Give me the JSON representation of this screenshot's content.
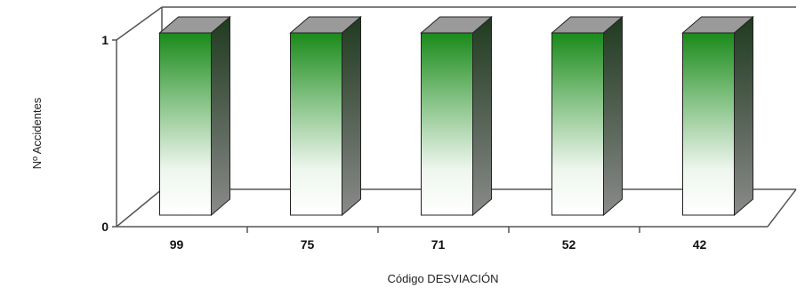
{
  "chart_data": {
    "type": "bar",
    "title": "",
    "xlabel": "Código DESVIACIÓN",
    "ylabel": "Nº Accidentes",
    "categories": [
      "99",
      "75",
      "71",
      "52",
      "42"
    ],
    "values": [
      1,
      1,
      1,
      1,
      1
    ],
    "ylim": [
      0,
      1
    ],
    "yticks": [
      "0",
      "1"
    ],
    "grid": false,
    "legend": "none",
    "style": "3d",
    "colors": {
      "bar_top": "#1a8a1a",
      "bar_bottom": "#ffffff",
      "bar_side_top": "#1f3a1f",
      "bar_side_bottom": "#8a8a8a",
      "axis": "#555555"
    }
  }
}
